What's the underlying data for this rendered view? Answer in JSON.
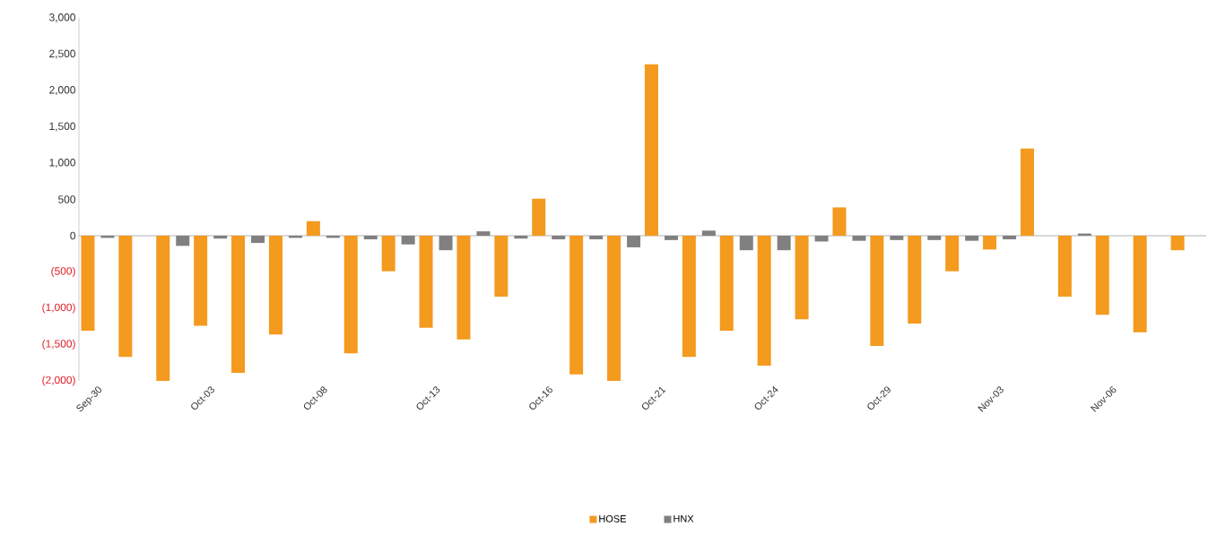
{
  "chart_data": {
    "type": "bar",
    "categories": [
      "Sep-30",
      null,
      null,
      "Oct-03",
      null,
      null,
      "Oct-08",
      null,
      null,
      "Oct-13",
      null,
      null,
      "Oct-16",
      null,
      null,
      "Oct-21",
      null,
      null,
      "Oct-24",
      null,
      null,
      "Oct-29",
      null,
      null,
      "Nov-03",
      null,
      null,
      "Nov-06",
      null,
      null
    ],
    "series": [
      {
        "name": "HOSE",
        "color": "#f39a1f",
        "values": [
          -1310,
          -1670,
          -2000,
          -1240,
          -1890,
          -1360,
          200,
          -1620,
          -490,
          -1270,
          -1430,
          -840,
          510,
          -1910,
          -2000,
          2360,
          -1670,
          -1310,
          -1790,
          -1150,
          390,
          -1520,
          -1210,
          -490,
          -190,
          1200,
          -840,
          -1090,
          -1330,
          -200
        ]
      },
      {
        "name": "HNX",
        "color": "#808080",
        "values": [
          -30,
          0,
          -140,
          -40,
          -100,
          -30,
          -30,
          -50,
          -120,
          -200,
          60,
          -40,
          -50,
          -50,
          -160,
          -60,
          70,
          -200,
          -200,
          -80,
          -70,
          -60,
          -60,
          -70,
          -50,
          0,
          30,
          0,
          0,
          0
        ]
      }
    ],
    "ylim": [
      -2000,
      3000
    ],
    "yticks": [
      {
        "value": -2000,
        "label": "(2,000)"
      },
      {
        "value": -1500,
        "label": "(1,500)"
      },
      {
        "value": -1000,
        "label": "(1,000)"
      },
      {
        "value": -500,
        "label": "(500)"
      },
      0,
      {
        "value": 500,
        "label": "500"
      },
      {
        "value": 1000,
        "label": "1,000"
      },
      {
        "value": 1500,
        "label": "1,500"
      },
      {
        "value": 2000,
        "label": "2,000"
      },
      {
        "value": 2500,
        "label": "2,500"
      },
      {
        "value": 3000,
        "label": "3,000"
      }
    ],
    "legend": "bottom"
  }
}
